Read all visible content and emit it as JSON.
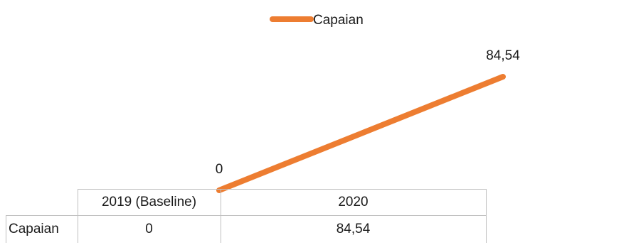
{
  "chart_data": {
    "type": "line",
    "categories": [
      "2019 (Baseline)",
      "2020"
    ],
    "series": [
      {
        "name": "Capaian",
        "values": [
          0,
          84.54
        ],
        "labels": [
          "0",
          "84,54"
        ],
        "color": "#ED7D31"
      }
    ],
    "legend_position": "top",
    "grid": false,
    "data_table": true,
    "table_row_label": "Capaian"
  }
}
